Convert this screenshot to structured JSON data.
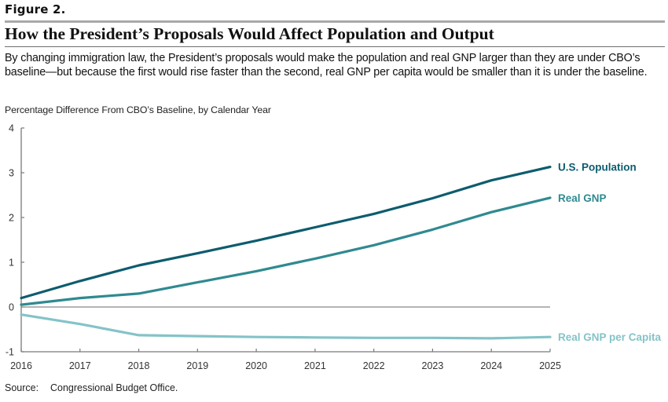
{
  "figure": {
    "label": "Figure 2.",
    "title": "How the President’s Proposals Would Affect Population and Output",
    "description": "By changing immigration law, the President’s proposals would make the population and real GNP larger than they are under CBO’s baseline—but because the first would rise faster than the second, real GNP per capita would be smaller than it is under the baseline.",
    "source_label": "Source:",
    "source_text": "Congressional Budget Office."
  },
  "chart_data": {
    "type": "line",
    "title": "How the President’s Proposals Would Affect Population and Output",
    "subtitle": "Percentage Difference From CBO’s Baseline, by Calendar Year",
    "xlabel": "",
    "ylabel": "Percentage Difference From CBO’s Baseline, by Calendar Year",
    "x": [
      2016,
      2017,
      2018,
      2019,
      2020,
      2021,
      2022,
      2023,
      2024,
      2025
    ],
    "x_tick_labels": [
      "2016",
      "2017",
      "2018",
      "2019",
      "2020",
      "2021",
      "2022",
      "2023",
      "2024",
      "2025"
    ],
    "y_ticks": [
      -1,
      0,
      1,
      2,
      3,
      4
    ],
    "y_tick_labels": [
      "-1",
      "0",
      "1",
      "2",
      "3",
      "4"
    ],
    "ylim": [
      -1,
      4
    ],
    "xlim": [
      2016,
      2025
    ],
    "grid": false,
    "zero_line": true,
    "legend": "direct labels at right end of lines",
    "series": [
      {
        "name": "U.S. Population",
        "color": "#0d5c6e",
        "values": [
          0.2,
          0.58,
          0.93,
          1.2,
          1.48,
          1.78,
          2.08,
          2.43,
          2.83,
          3.13
        ]
      },
      {
        "name": "Real GNP",
        "color": "#2f8a90",
        "values": [
          0.05,
          0.2,
          0.3,
          0.55,
          0.8,
          1.08,
          1.38,
          1.73,
          2.12,
          2.44
        ]
      },
      {
        "name": "Real GNP per Capita",
        "color": "#84c3c8",
        "values": [
          -0.17,
          -0.38,
          -0.63,
          -0.65,
          -0.67,
          -0.68,
          -0.69,
          -0.69,
          -0.7,
          -0.67
        ]
      }
    ]
  },
  "colors": {
    "axis": "#7a7a7a",
    "zero_line": "#6a6a6a",
    "text": "#1a1a1a"
  }
}
